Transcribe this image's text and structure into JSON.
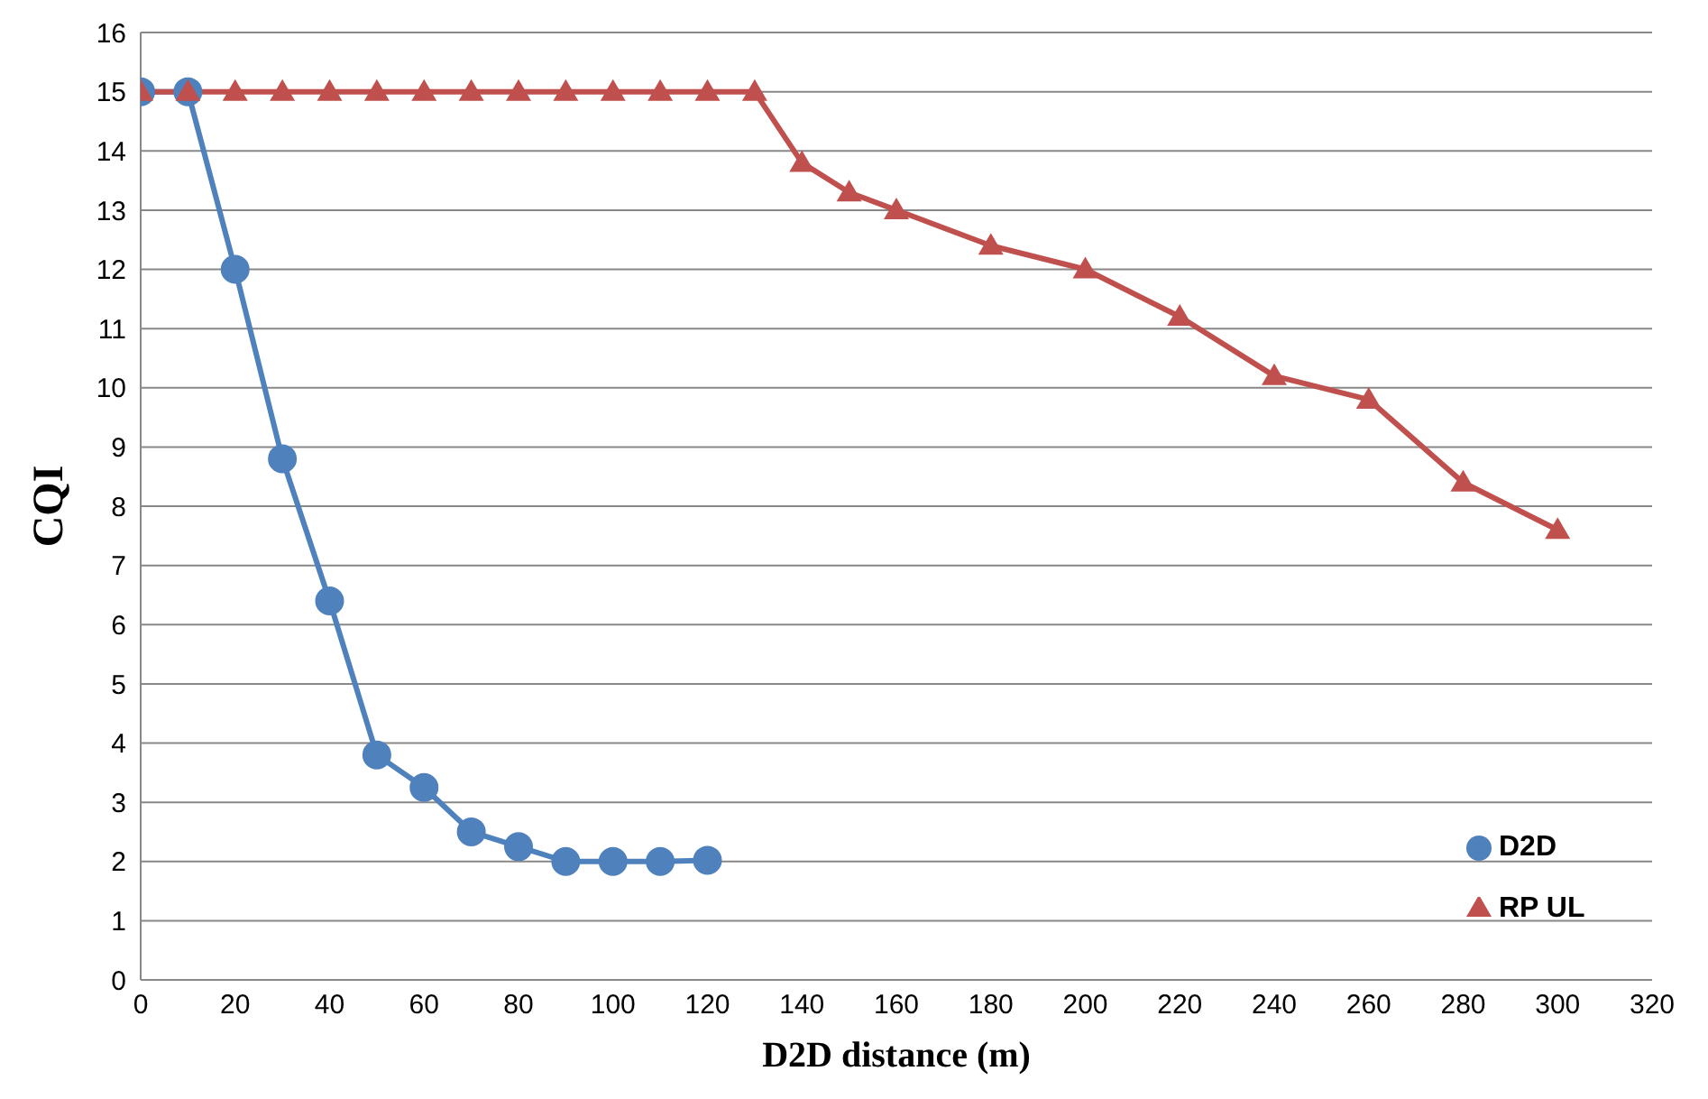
{
  "chart_data": {
    "type": "line",
    "xlabel": "D2D distance (m)",
    "ylabel": "CQI",
    "xlim": [
      0,
      320
    ],
    "xticks": [
      0,
      20,
      40,
      60,
      80,
      100,
      120,
      140,
      160,
      180,
      200,
      220,
      240,
      260,
      280,
      300,
      320
    ],
    "ylim": [
      0,
      16
    ],
    "yticks": [
      0,
      1,
      2,
      3,
      4,
      5,
      6,
      7,
      8,
      9,
      10,
      11,
      12,
      13,
      14,
      15,
      16
    ],
    "grid": "y",
    "legend": "bottom right",
    "line_style": "solid",
    "series": [
      {
        "name": "D2D",
        "color": "#4f81bd",
        "marker": "circle",
        "x": [
          0,
          10,
          20,
          30,
          40,
          50,
          60,
          70,
          80,
          90,
          100,
          110,
          120
        ],
        "values": [
          15,
          15,
          12,
          8.8,
          6.4,
          3.8,
          3.25,
          2.5,
          2.25,
          2,
          2,
          2,
          2.02
        ]
      },
      {
        "name": "RP UL",
        "color": "#c0504d",
        "marker": "triangle",
        "x": [
          0,
          10,
          20,
          30,
          40,
          50,
          60,
          70,
          80,
          90,
          100,
          110,
          120,
          130,
          140,
          150,
          160,
          180,
          200,
          220,
          240,
          260,
          280,
          300
        ],
        "values": [
          15,
          15,
          15,
          15,
          15,
          15,
          15,
          15,
          15,
          15,
          15,
          15,
          15,
          15,
          13.8,
          13.3,
          13,
          12.4,
          12,
          11.2,
          10.2,
          9.8,
          8.4,
          7.6
        ]
      }
    ]
  }
}
